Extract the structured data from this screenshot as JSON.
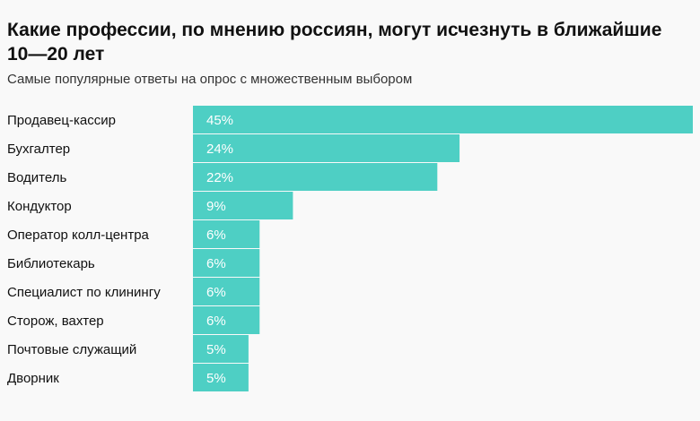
{
  "chart_data": {
    "type": "bar",
    "orientation": "horizontal",
    "title": "Какие профессии, по мнению россиян, могут исчезнуть в ближайшие 10—20 лет",
    "subtitle": "Самые популярные ответы на опрос с множественным выбором",
    "categories": [
      "Продавец-кассир",
      "Бухгалтер",
      "Водитель",
      "Кондуктор",
      "Оператор колл-центра",
      "Библиотекарь",
      "Специалист по клинингу",
      "Сторож, вахтер",
      "Почтовые служащий",
      "Дворник"
    ],
    "values": [
      45,
      24,
      22,
      9,
      6,
      6,
      6,
      6,
      5,
      5
    ],
    "value_labels": [
      "45%",
      "24%",
      "22%",
      "9%",
      "6%",
      "6%",
      "6%",
      "6%",
      "5%",
      "5%"
    ],
    "xlim": [
      0,
      45
    ],
    "grid": false,
    "bar_color": "#4ecfc4",
    "background": "#f9f9f9"
  }
}
